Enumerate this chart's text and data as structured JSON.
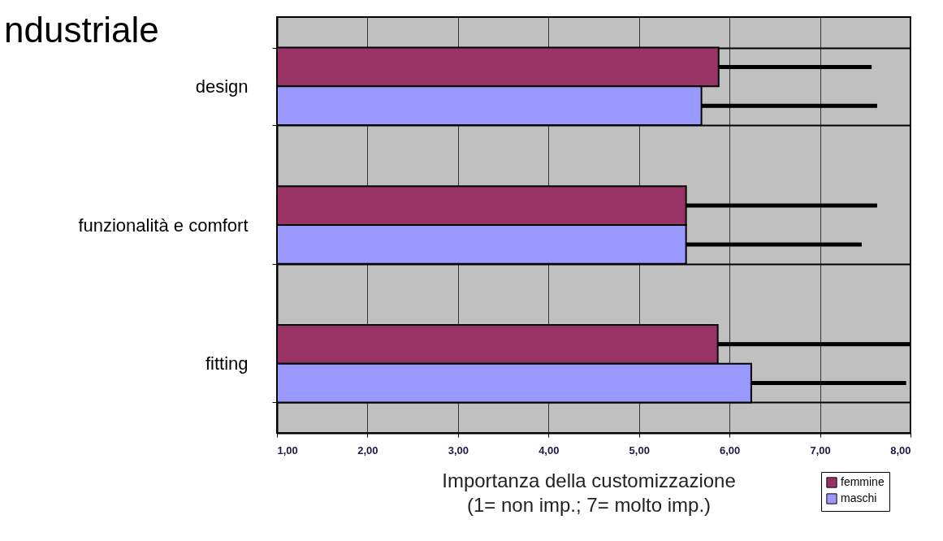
{
  "chart_data": {
    "type": "bar",
    "orientation": "horizontal",
    "title": "ndustriale",
    "xlabel": "Importanza della customizzazione\n(1= non imp.; 7= molto imp.)",
    "categories": [
      "design",
      "funzionalità e comfort",
      "fitting"
    ],
    "series": [
      {
        "name": "femmine",
        "color": "#993366",
        "values": [
          5.88,
          5.52,
          5.87
        ],
        "errors": [
          1.69,
          2.11,
          2.13
        ]
      },
      {
        "name": "maschi",
        "color": "#9999ff",
        "values": [
          5.69,
          5.52,
          6.24
        ],
        "errors": [
          1.94,
          1.94,
          1.71
        ]
      }
    ],
    "xlim": [
      1,
      8
    ],
    "xticks": [
      {
        "value": 1,
        "label": "1,00"
      },
      {
        "value": 2,
        "label": "2,00"
      },
      {
        "value": 3,
        "label": "3,00"
      },
      {
        "value": 4,
        "label": "4,00"
      },
      {
        "value": 5,
        "label": "5,00"
      },
      {
        "value": 6,
        "label": "6,00"
      },
      {
        "value": 7,
        "label": "7,00"
      },
      {
        "value": 8,
        "label": "8,00"
      }
    ],
    "grid": true,
    "legend": "bottom right"
  }
}
